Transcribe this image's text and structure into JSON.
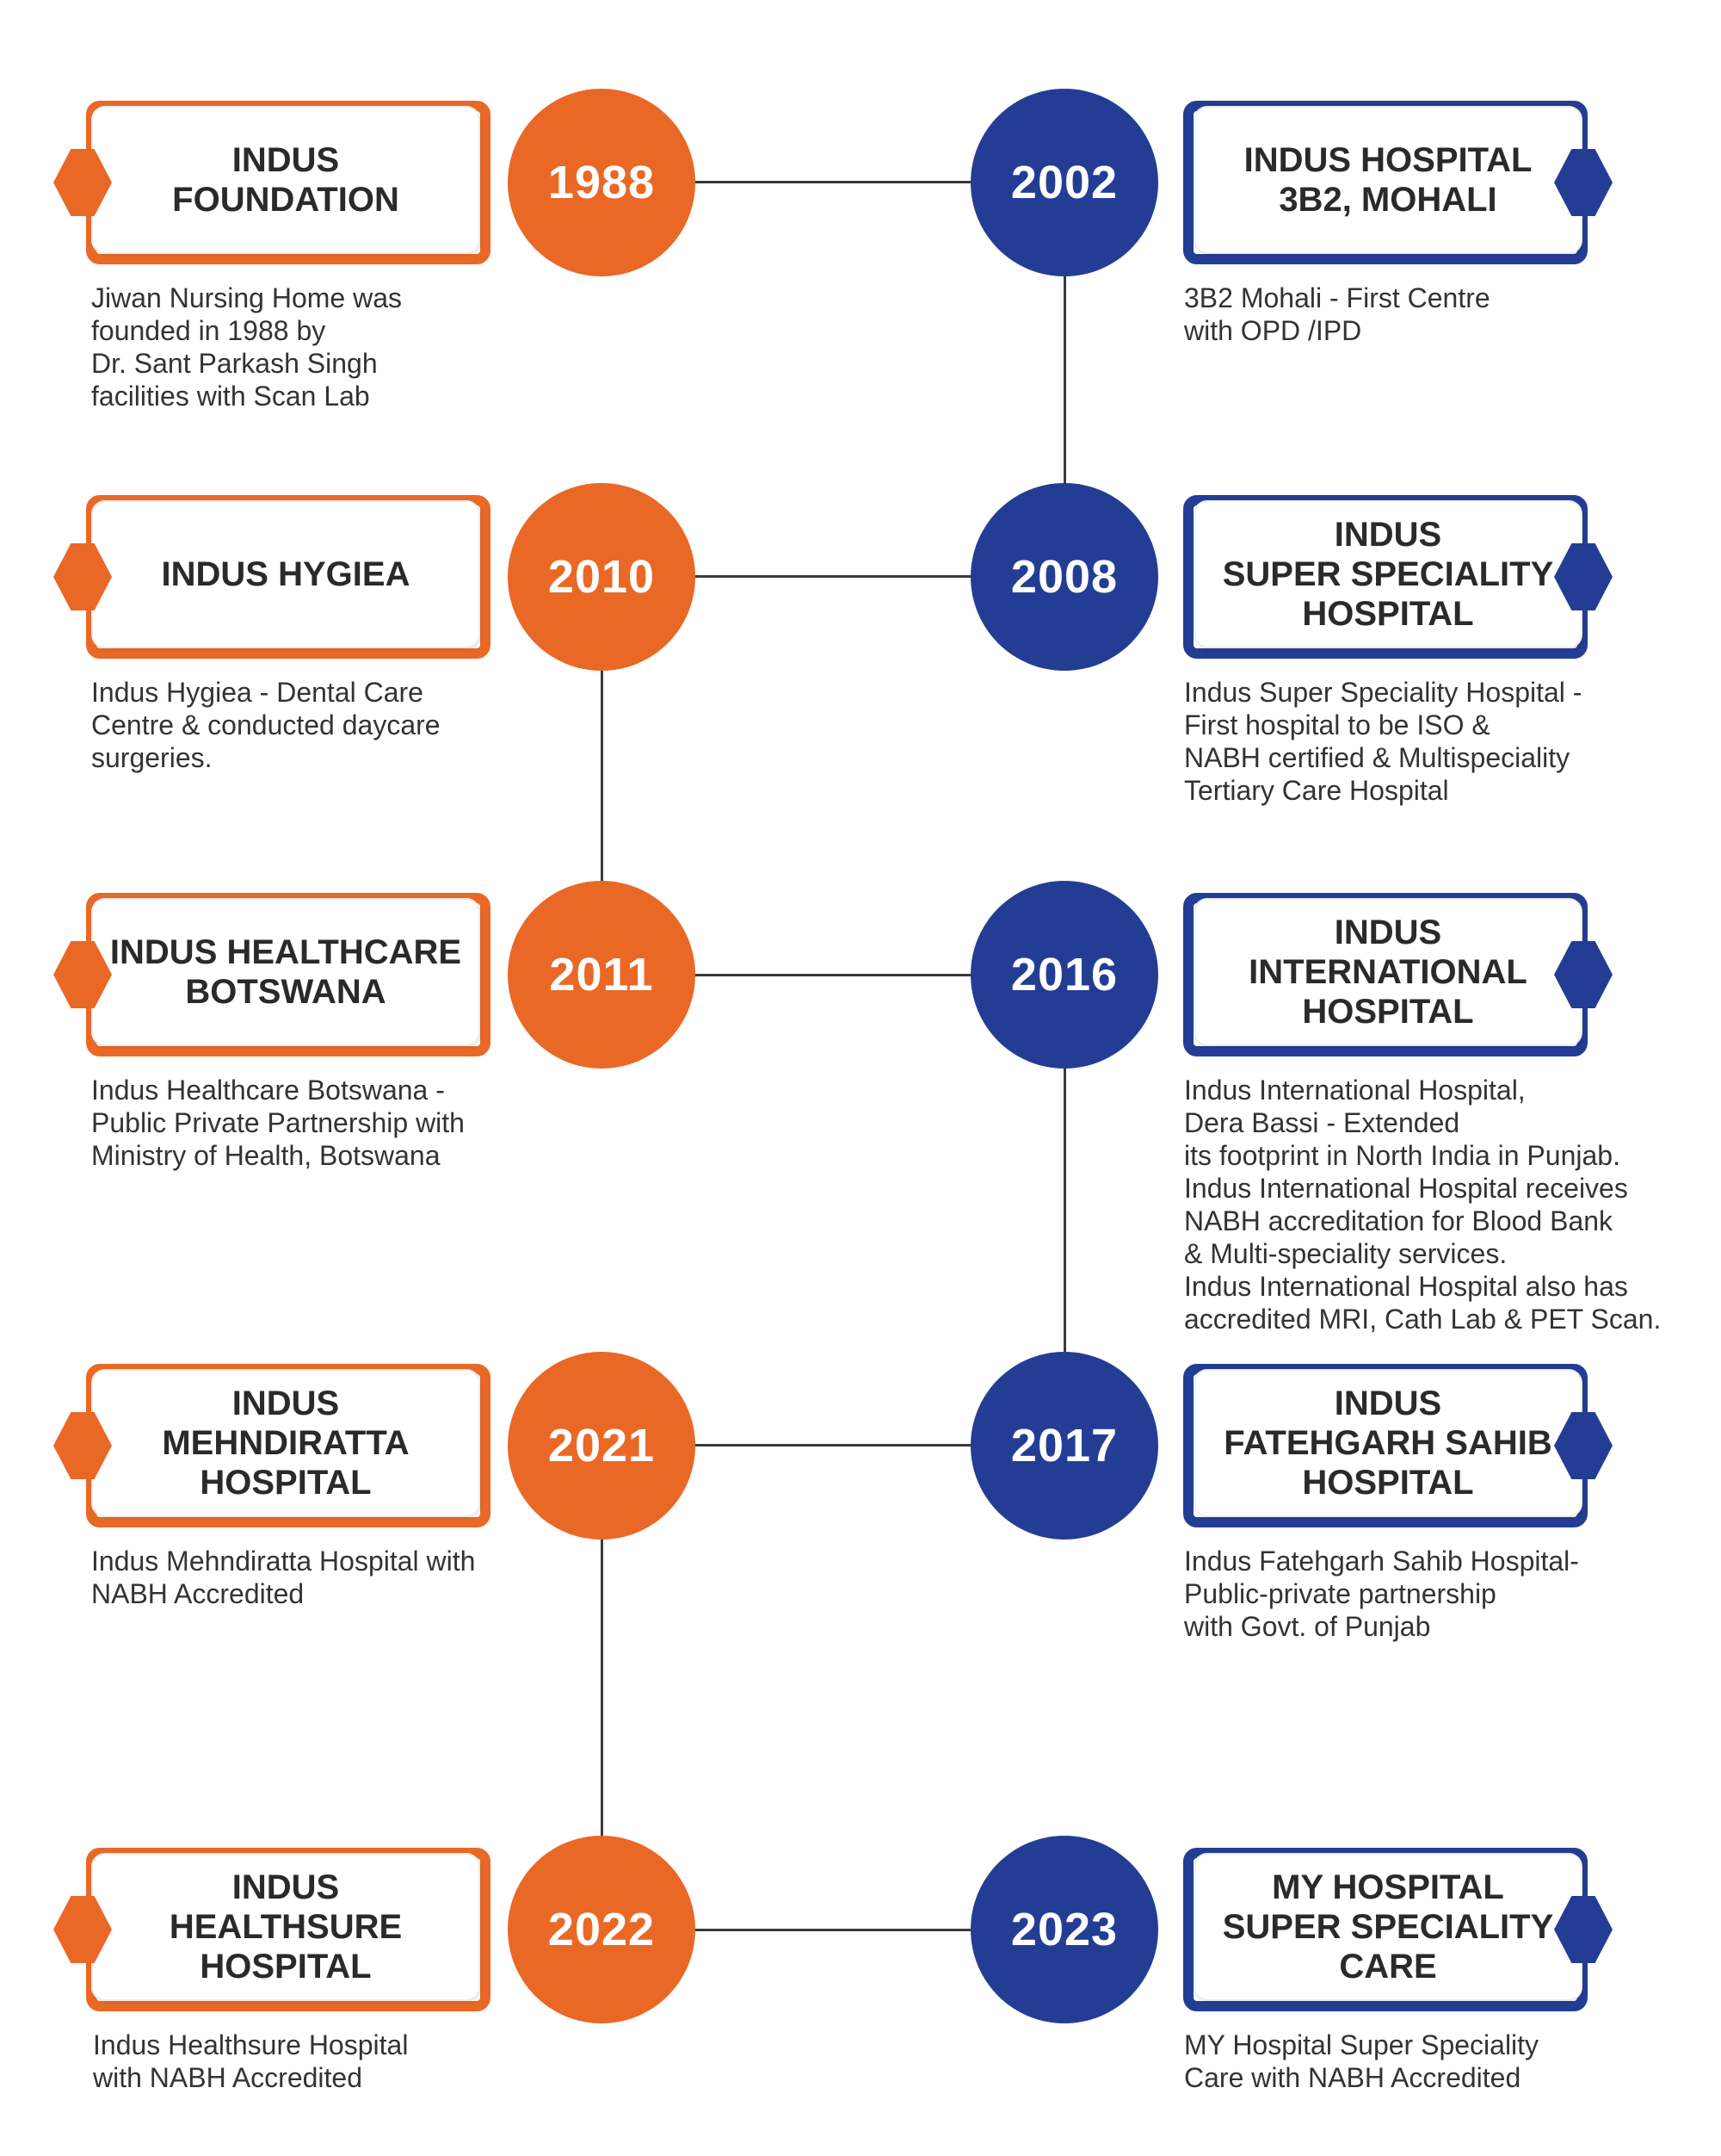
{
  "colors": {
    "orange": "#ea6826",
    "blue": "#243d94",
    "line": "#3a3a3a"
  },
  "milestones": [
    {
      "year": "1988",
      "title": "INDUS\nFOUNDATION",
      "description": "Jiwan Nursing Home was\nfounded in 1988 by\nDr. Sant Parkash Singh\nfacilities with Scan Lab"
    },
    {
      "year": "2002",
      "title": "INDUS HOSPITAL\n3B2, MOHALI",
      "description": "3B2 Mohali - First Centre\nwith OPD /IPD"
    },
    {
      "year": "2010",
      "title": "INDUS HYGIEA",
      "description": "Indus Hygiea - Dental Care\nCentre & conducted daycare\nsurgeries."
    },
    {
      "year": "2008",
      "title": "INDUS\nSUPER SPECIALITY\nHOSPITAL",
      "description": "Indus Super Speciality Hospital -\nFirst hospital to be ISO &\nNABH certified & Multispeciality\nTertiary Care Hospital"
    },
    {
      "year": "2011",
      "title": "INDUS HEALTHCARE\nBOTSWANA",
      "description": "Indus Healthcare Botswana -\nPublic Private Partnership with\nMinistry of Health, Botswana"
    },
    {
      "year": "2016",
      "title": "INDUS\nINTERNATIONAL\nHOSPITAL",
      "description": "Indus International Hospital,\nDera Bassi - Extended\nits footprint in North India in Punjab.\nIndus International Hospital receives\nNABH accreditation for Blood Bank\n& Multi-speciality services.\nIndus International Hospital also has\naccredited MRI, Cath Lab & PET Scan."
    },
    {
      "year": "2021",
      "title": "INDUS\nMEHNDIRATTA\nHOSPITAL",
      "description": "Indus Mehndiratta Hospital with\nNABH Accredited"
    },
    {
      "year": "2017",
      "title": "INDUS\nFATEHGARH SAHIB\nHOSPITAL",
      "description": "Indus Fatehgarh Sahib Hospital-\nPublic-private partnership\nwith Govt. of Punjab"
    },
    {
      "year": "2022",
      "title": "INDUS\nHEALTHSURE\nHOSPITAL",
      "description": "Indus Healthsure Hospital\nwith NABH Accredited"
    },
    {
      "year": "2023",
      "title": "MY HOSPITAL\nSUPER SPECIALITY\nCARE",
      "description": "MY Hospital Super Speciality\nCare with NABH Accredited"
    }
  ]
}
